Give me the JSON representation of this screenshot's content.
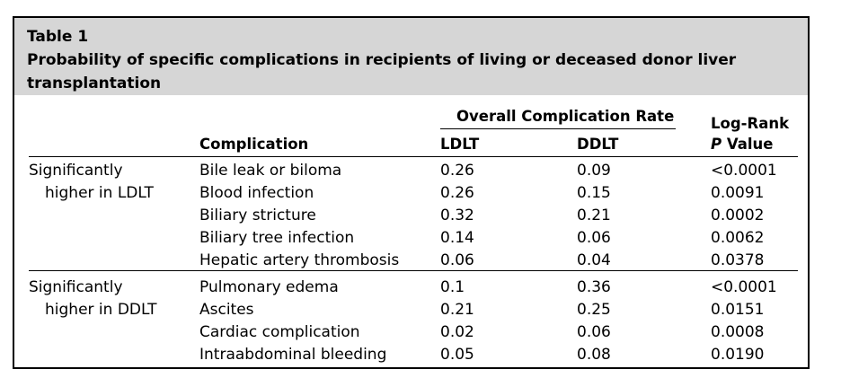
{
  "table": {
    "label": "Table 1",
    "title_line1": "Probability of specific complications in recipients of living or deceased donor liver",
    "title_line2": "transplantation",
    "header": {
      "group": "Overall Complication Rate",
      "complication": "Complication",
      "ldlt": "LDLT",
      "ddlt": "DDLT",
      "logrank_line1": "Log-Rank",
      "logrank_p": "P",
      "logrank_value": " Value"
    },
    "groups": [
      {
        "label_line1": "Significantly",
        "label_line2": "higher in LDLT",
        "rows": [
          {
            "complication": "Bile leak or biloma",
            "ldlt": "0.26",
            "ddlt": "0.09",
            "p": "<0.0001"
          },
          {
            "complication": "Blood infection",
            "ldlt": "0.26",
            "ddlt": "0.15",
            "p": "0.0091"
          },
          {
            "complication": "Biliary stricture",
            "ldlt": "0.32",
            "ddlt": "0.21",
            "p": "0.0002"
          },
          {
            "complication": "Biliary tree infection",
            "ldlt": "0.14",
            "ddlt": "0.06",
            "p": "0.0062"
          },
          {
            "complication": "Hepatic artery thrombosis",
            "ldlt": "0.06",
            "ddlt": "0.04",
            "p": "0.0378"
          }
        ]
      },
      {
        "label_line1": "Significantly",
        "label_line2": "higher in DDLT",
        "rows": [
          {
            "complication": "Pulmonary edema",
            "ldlt": "0.1",
            "ddlt": "0.36",
            "p": "<0.0001"
          },
          {
            "complication": "Ascites",
            "ldlt": "0.21",
            "ddlt": "0.25",
            "p": "0.0151"
          },
          {
            "complication": "Cardiac complication",
            "ldlt": "0.02",
            "ddlt": "0.06",
            "p": "0.0008"
          },
          {
            "complication": "Intraabdominal bleeding",
            "ldlt": "0.05",
            "ddlt": "0.08",
            "p": "0.0190"
          }
        ]
      }
    ]
  }
}
